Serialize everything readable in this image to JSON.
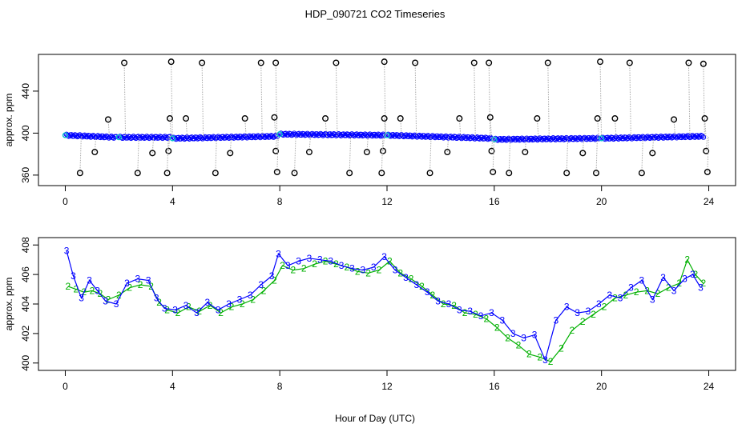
{
  "chart_data": {
    "type": "scatter",
    "title": "HDP_090721  CO2 Timeseries",
    "xlabel": "Hour of Day (UTC)",
    "x_ticks": [
      "0",
      "4",
      "8",
      "12",
      "16",
      "20",
      "24"
    ],
    "colors": {
      "points": "#0000ff",
      "outline": "#000000",
      "aux": "#00c8c8",
      "guide": "#aaaaaa",
      "series2": "#00b000",
      "series3": "#0000ff"
    },
    "panels": [
      {
        "name": "top",
        "ylabel": "approx. ppm",
        "y_ticks": [
          "360",
          "400",
          "440"
        ],
        "xlim": [
          -1.0,
          25.0
        ],
        "ylim": [
          350,
          475
        ],
        "segments": [
          {
            "x": [
              0.0,
              1.9
            ],
            "y": [
              398,
              396
            ]
          },
          {
            "x": [
              2.0,
              3.9
            ],
            "y": [
              396,
              396
            ]
          },
          {
            "x": [
              4.0,
              7.9
            ],
            "y": [
              395,
              397
            ]
          },
          {
            "x": [
              8.0,
              11.9
            ],
            "y": [
              399,
              398
            ]
          },
          {
            "x": [
              12.0,
              15.9
            ],
            "y": [
              398,
              395
            ]
          },
          {
            "x": [
              16.0,
              19.9
            ],
            "y": [
              394,
              395
            ]
          },
          {
            "x": [
              20.0,
              23.8
            ],
            "y": [
              395,
              397
            ]
          }
        ],
        "outliers": {
          "x": [
            2.2,
            3.95,
            5.1,
            7.3,
            7.85,
            10.1,
            11.9,
            13.05,
            15.25,
            15.8,
            18.0,
            19.95,
            21.05,
            23.25,
            23.8,
            1.6,
            3.9,
            4.5,
            6.7,
            7.8,
            9.7,
            11.9,
            12.5,
            14.7,
            15.85,
            17.6,
            19.85,
            20.5,
            22.7,
            23.85,
            1.1,
            3.25,
            3.85,
            6.15,
            7.85,
            9.1,
            11.25,
            11.85,
            14.25,
            15.9,
            17.15,
            19.3,
            21.9,
            23.9,
            0.55,
            2.7,
            3.8,
            5.6,
            7.9,
            8.55,
            10.6,
            11.8,
            13.6,
            15.95,
            16.55,
            18.7,
            19.8,
            21.5,
            23.95
          ],
          "y": [
            467,
            468,
            467,
            467,
            467,
            467,
            468,
            467,
            467,
            467,
            467,
            468,
            467,
            467,
            466,
            413,
            414,
            414,
            414,
            415,
            414,
            414,
            414,
            414,
            415,
            414,
            414,
            414,
            413,
            414,
            382,
            381,
            383,
            381,
            383,
            382,
            382,
            383,
            382,
            383,
            382,
            381,
            381,
            383,
            362,
            362,
            362,
            362,
            363,
            362,
            362,
            362,
            362,
            363,
            362,
            362,
            362,
            362,
            363
          ]
        }
      },
      {
        "name": "bottom",
        "ylabel": "approx. ppm",
        "y_ticks": [
          "400",
          "402",
          "404",
          "406",
          "408"
        ],
        "xlim": [
          -1.0,
          25.0
        ],
        "ylim": [
          399.5,
          408.5
        ],
        "marker_labels": [
          "2",
          "3"
        ],
        "series": [
          {
            "name": "2",
            "x": [
              0.1,
              0.4,
              0.7,
              1.0,
              1.3,
              1.6,
              2.0,
              2.4,
              2.8,
              3.2,
              3.5,
              3.8,
              4.2,
              4.6,
              5.0,
              5.4,
              5.8,
              6.2,
              6.6,
              7.0,
              7.4,
              7.8,
              8.1,
              8.5,
              8.9,
              9.3,
              9.7,
              10.1,
              10.5,
              10.9,
              11.3,
              11.7,
              12.1,
              12.5,
              12.9,
              13.3,
              13.7,
              14.1,
              14.5,
              14.9,
              15.3,
              15.7,
              16.1,
              16.5,
              16.9,
              17.3,
              17.7,
              18.1,
              18.5,
              18.9,
              19.3,
              19.7,
              20.1,
              20.5,
              20.9,
              21.3,
              21.7,
              22.1,
              22.5,
              22.9,
              23.2,
              23.5,
              23.8
            ],
            "y": [
              405.2,
              405.0,
              404.8,
              404.9,
              404.7,
              404.3,
              404.6,
              405.1,
              405.3,
              405.2,
              404.1,
              403.6,
              403.4,
              403.8,
              403.5,
              403.9,
              403.4,
              403.8,
              404.0,
              404.3,
              404.9,
              405.6,
              406.6,
              406.3,
              406.4,
              406.7,
              406.9,
              406.7,
              406.5,
              406.2,
              406.1,
              406.3,
              406.9,
              406.1,
              405.7,
              405.2,
              404.6,
              404.0,
              403.9,
              403.4,
              403.3,
              403.0,
              402.4,
              401.7,
              401.2,
              400.6,
              400.4,
              400.1,
              401.0,
              402.2,
              402.8,
              403.3,
              403.8,
              404.4,
              404.6,
              404.8,
              404.9,
              404.7,
              405.1,
              405.4,
              407.0,
              406.0,
              405.4
            ]
          },
          {
            "name": "3",
            "x": [
              0.05,
              0.3,
              0.6,
              0.9,
              1.2,
              1.5,
              1.9,
              2.3,
              2.7,
              3.1,
              3.4,
              3.7,
              4.1,
              4.5,
              4.9,
              5.3,
              5.7,
              6.1,
              6.5,
              6.9,
              7.3,
              7.7,
              7.95,
              8.3,
              8.7,
              9.1,
              9.5,
              9.9,
              10.3,
              10.7,
              11.1,
              11.5,
              11.9,
              12.3,
              12.7,
              13.1,
              13.5,
              13.9,
              14.3,
              14.7,
              15.1,
              15.5,
              15.9,
              16.3,
              16.7,
              17.1,
              17.5,
              17.9,
              18.3,
              18.7,
              19.1,
              19.5,
              19.9,
              20.3,
              20.7,
              21.1,
              21.5,
              21.9,
              22.3,
              22.7,
              23.1,
              23.4,
              23.7
            ],
            "y": [
              407.6,
              405.9,
              404.4,
              405.6,
              404.9,
              404.2,
              404.0,
              405.4,
              405.7,
              405.6,
              404.4,
              403.7,
              403.6,
              403.9,
              403.4,
              404.1,
              403.6,
              404.0,
              404.3,
              404.6,
              405.3,
              405.9,
              407.4,
              406.6,
              406.9,
              407.1,
              407.0,
              406.9,
              406.6,
              406.4,
              406.3,
              406.5,
              407.2,
              406.3,
              405.8,
              405.3,
              404.8,
              404.2,
              404.0,
              403.6,
              403.5,
              403.2,
              403.4,
              402.9,
              402.0,
              401.7,
              401.9,
              400.2,
              402.9,
              403.8,
              403.4,
              403.5,
              404.0,
              404.6,
              404.4,
              405.1,
              405.6,
              404.3,
              405.8,
              404.9,
              405.7,
              406.0,
              405.1
            ]
          }
        ]
      }
    ]
  }
}
